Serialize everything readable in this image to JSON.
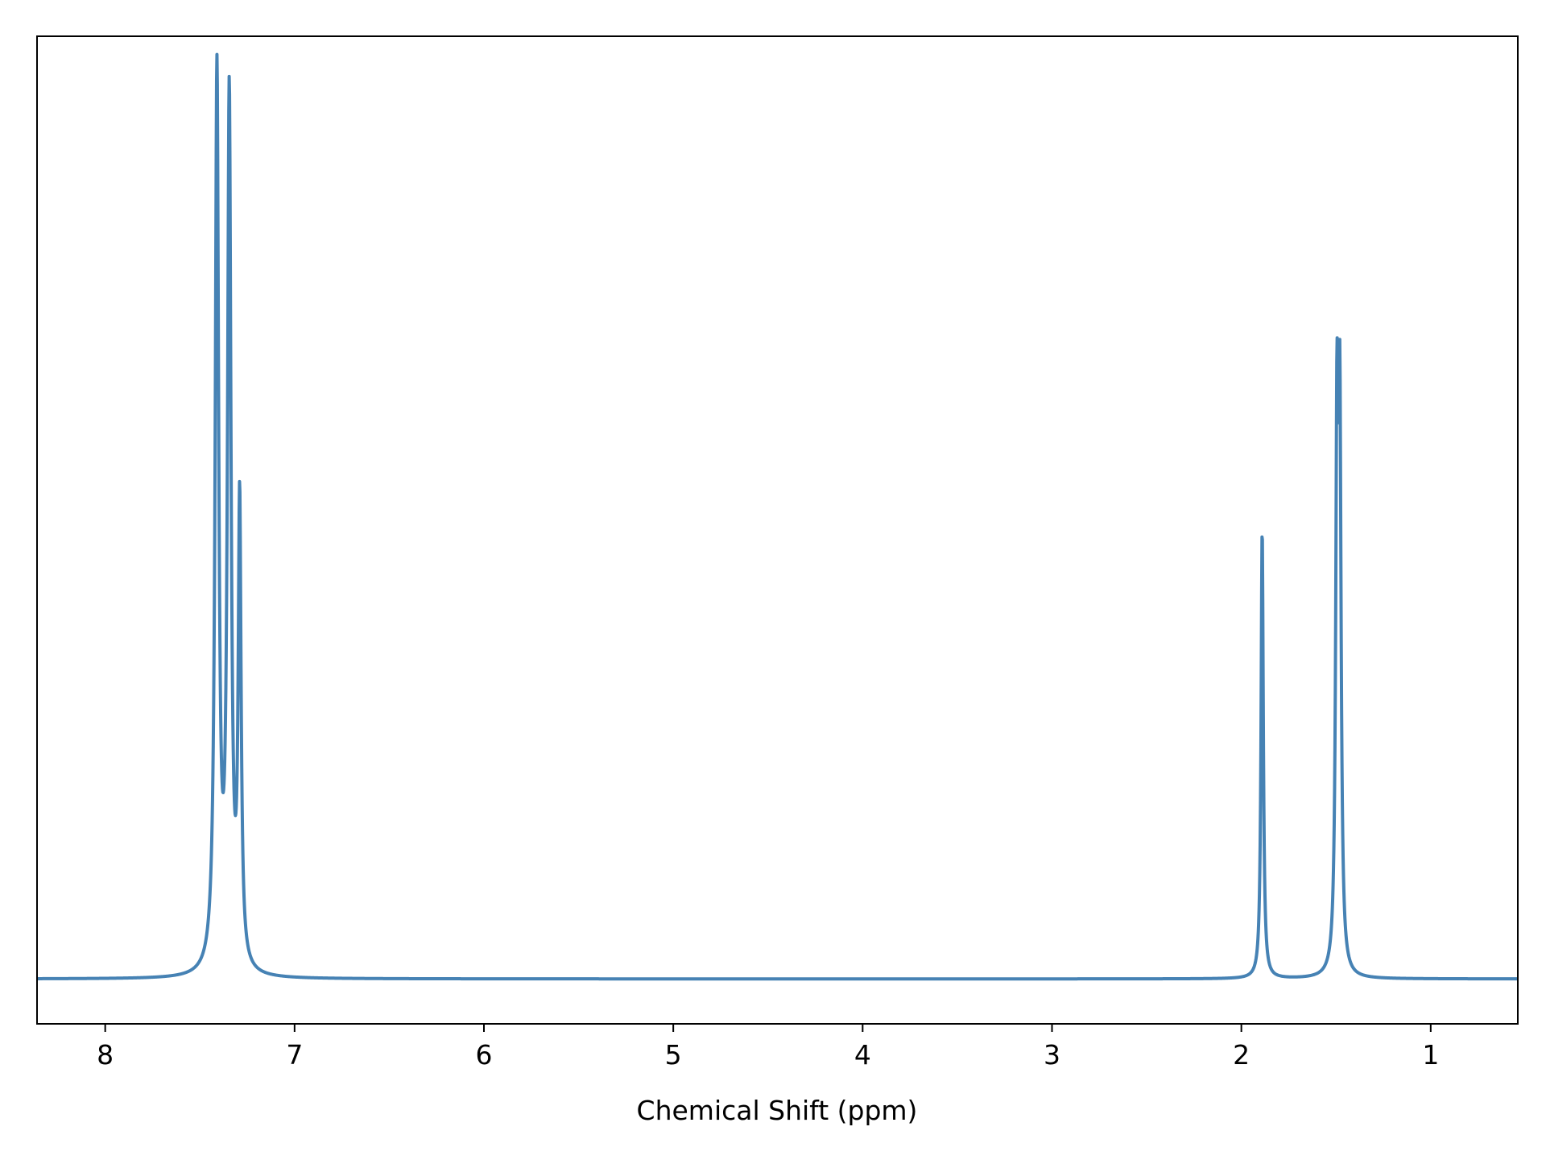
{
  "chart_data": {
    "type": "line",
    "title": "",
    "xlabel": "Chemical Shift (ppm)",
    "ylabel": "",
    "x_reversed": true,
    "xlim": [
      8.36,
      0.54
    ],
    "ylim": [
      -0.05,
      1.05
    ],
    "grid": false,
    "yticks_visible": false,
    "xticks": [
      8,
      7,
      6,
      5,
      4,
      3,
      2,
      1
    ],
    "xtick_labels": [
      "8",
      "7",
      "6",
      "5",
      "4",
      "3",
      "2",
      "1"
    ],
    "line_color": "#4682b4",
    "linewidth_hint": "medium",
    "peaks": [
      {
        "ppm": 7.41,
        "intensity": 1.0,
        "width": 0.011
      },
      {
        "ppm": 7.345,
        "intensity": 0.965,
        "width": 0.011
      },
      {
        "ppm": 7.29,
        "intensity": 0.51,
        "width": 0.009
      },
      {
        "ppm": 1.89,
        "intensity": 0.5,
        "width": 0.007
      },
      {
        "ppm": 1.495,
        "intensity": 0.58,
        "width": 0.008
      },
      {
        "ppm": 1.48,
        "intensity": 0.58,
        "width": 0.008
      }
    ],
    "baseline": 0.0
  }
}
